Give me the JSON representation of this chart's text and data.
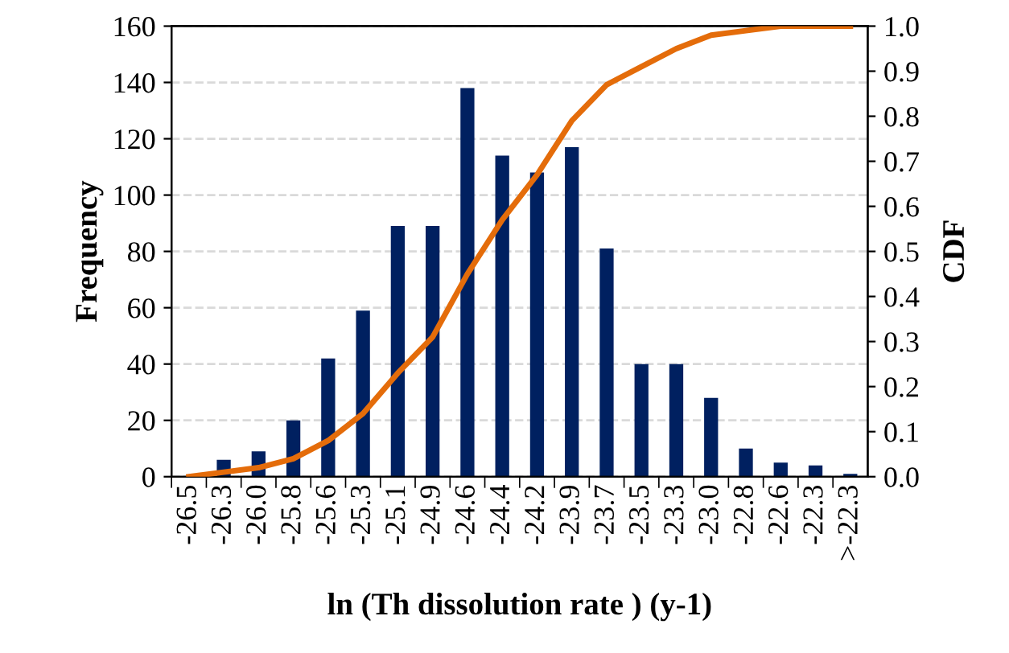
{
  "chart_data": {
    "type": "bar",
    "xlabel": "ln (Th dissolution rate ) (y-1)",
    "ylabel": "Frequency",
    "y2label": "CDF",
    "categories": [
      "-26.5",
      "-26.3",
      "-26.0",
      "-25.8",
      "-25.6",
      "-25.3",
      "-25.1",
      "-24.9",
      "-24.6",
      "-24.4",
      "-24.2",
      "-23.9",
      "-23.7",
      "-23.5",
      "-23.3",
      "-23.0",
      "-22.8",
      "-22.6",
      "-22.3",
      ">-22.3"
    ],
    "series": [
      {
        "color": "#002060",
        "values": [
          0,
          6,
          9,
          20,
          42,
          59,
          89,
          89,
          138,
          114,
          108,
          117,
          81,
          40,
          40,
          28,
          10,
          5,
          4,
          1
        ]
      },
      {
        "type": "line",
        "axis": "y2",
        "color": "#e46c0a",
        "values": [
          0,
          0.01,
          0.02,
          0.04,
          0.08,
          0.14,
          0.23,
          0.31,
          0.45,
          0.57,
          0.67,
          0.79,
          0.87,
          0.91,
          0.95,
          0.98,
          0.99,
          1.0,
          1.0,
          1.0
        ]
      }
    ],
    "ylim": [
      0,
      160
    ],
    "yticks": [
      0,
      20,
      40,
      60,
      80,
      100,
      120,
      140,
      160
    ],
    "y2lim": [
      0,
      1
    ],
    "y2ticks": [
      {
        "value": 0,
        "label": "0.0"
      },
      {
        "value": 0.1,
        "label": "0.1"
      },
      {
        "value": 0.2,
        "label": "0.2"
      },
      {
        "value": 0.3,
        "label": "0.3"
      },
      {
        "value": 0.4,
        "label": "0.4"
      },
      {
        "value": 0.5,
        "label": "0.5"
      },
      {
        "value": 0.6,
        "label": "0.6"
      },
      {
        "value": 0.7,
        "label": "0.7"
      },
      {
        "value": 0.8,
        "label": "0.8"
      },
      {
        "value": 0.9,
        "label": "0.9"
      },
      {
        "value": 1,
        "label": "1.0"
      }
    ],
    "grid": "y",
    "marker": "none",
    "line_style": "solid"
  }
}
